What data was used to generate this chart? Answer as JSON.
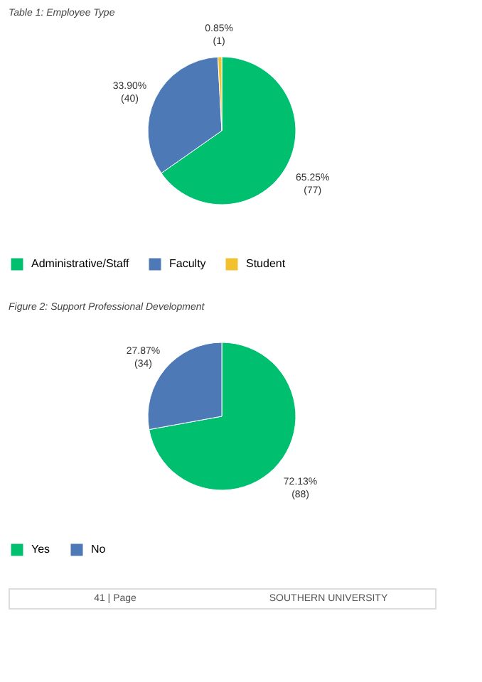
{
  "chart_data": [
    {
      "type": "pie",
      "title": "Table 1: Employee Type",
      "categories": [
        "Administrative/Staff",
        "Faculty",
        "Student"
      ],
      "values": [
        77,
        40,
        1
      ],
      "colors": [
        "#00bf6f",
        "#4e79b7",
        "#f2c12e"
      ],
      "value_labels": [
        "65.25%\n(77)",
        "33.90%\n(40)",
        "0.85%\n(1)"
      ],
      "legend": "bottom"
    },
    {
      "type": "pie",
      "title": "Figure 2: Support Professional Development",
      "categories": [
        "Yes",
        "No"
      ],
      "values": [
        88,
        34
      ],
      "colors": [
        "#00bf6f",
        "#4e79b7"
      ],
      "value_labels": [
        "72.13%\n(88)",
        "27.87%\n(34)"
      ],
      "legend": "bottom",
      "annotations": [
        "41 | Page",
        "SOUTHERN UNIVERSITY"
      ]
    }
  ]
}
